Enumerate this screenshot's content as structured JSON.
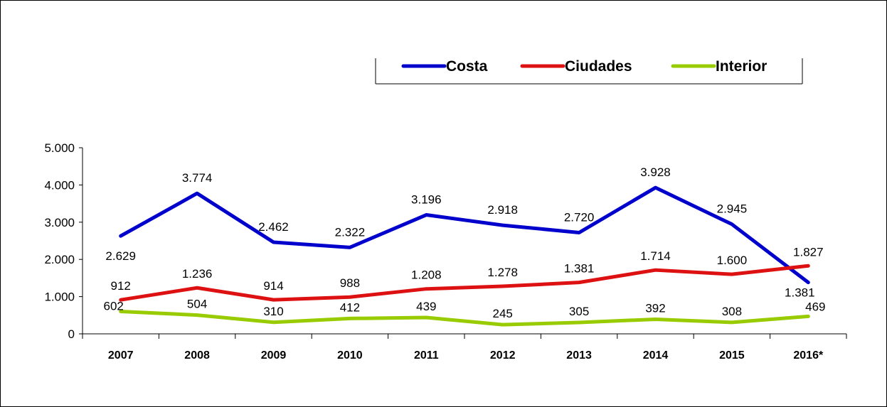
{
  "chart_data": {
    "type": "line",
    "title": "",
    "xlabel": "",
    "ylabel": "",
    "categories": [
      "2007",
      "2008",
      "2009",
      "2010",
      "2011",
      "2012",
      "2013",
      "2014",
      "2015",
      "2016*"
    ],
    "ylim": [
      0,
      5000
    ],
    "yticks": [
      0,
      1000,
      2000,
      3000,
      4000,
      5000
    ],
    "ytick_labels": [
      "0",
      "1.000",
      "2.000",
      "3.000",
      "4.000",
      "5.000"
    ],
    "grid": false,
    "legend_position": "top-right",
    "series": [
      {
        "name": "Costa",
        "color": "#0000cc",
        "values": [
          2629,
          3774,
          2462,
          2322,
          3196,
          2918,
          2720,
          3928,
          2945,
          1381
        ],
        "labels": [
          "2.629",
          "3.774",
          "2.462",
          "2.322",
          "3.196",
          "2.918",
          "2.720",
          "3.928",
          "2.945",
          "1.381"
        ]
      },
      {
        "name": "Ciudades",
        "color": "#dd1111",
        "values": [
          912,
          1236,
          914,
          988,
          1208,
          1278,
          1381,
          1714,
          1600,
          1827
        ],
        "labels": [
          "912",
          "1.236",
          "914",
          "988",
          "1.208",
          "1.278",
          "1.381",
          "1.714",
          "1.600",
          "1.827"
        ]
      },
      {
        "name": "Interior",
        "color": "#99cc00",
        "values": [
          602,
          504,
          310,
          412,
          439,
          245,
          305,
          392,
          308,
          469
        ],
        "labels": [
          "602",
          "504",
          "310",
          "412",
          "439",
          "245",
          "305",
          "392",
          "308",
          "469"
        ]
      }
    ]
  }
}
